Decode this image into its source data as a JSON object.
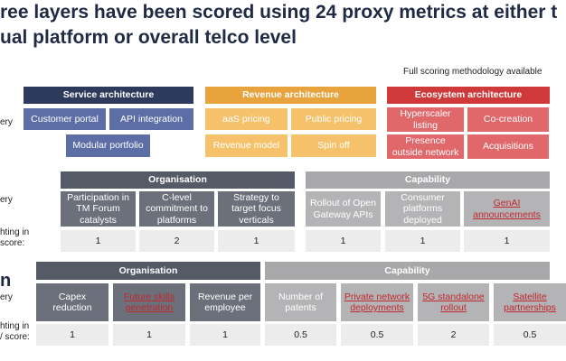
{
  "header": {
    "title_lines": [
      "ree layers have been scored using 24 proxy metrics at either t",
      "ual platform or overall telco level"
    ],
    "note": "Full scoring methodology available"
  },
  "side_labels": [
    "ery",
    "ery",
    "hting in",
    "score:",
    "n",
    "ery",
    "hting in",
    "/ score:"
  ],
  "layer1": {
    "groups": [
      {
        "header": "Service architecture",
        "items": [
          {
            "label": "Customer portal"
          },
          {
            "label": "API integration"
          },
          {
            "label": "Modular portfolio"
          }
        ]
      },
      {
        "header": "Revenue architecture",
        "items": [
          {
            "label": "aaS pricing"
          },
          {
            "label": "Public pricing"
          },
          {
            "label": "Revenue model"
          },
          {
            "label": "Spin off"
          }
        ]
      },
      {
        "header": "Ecosystem architecture",
        "items": [
          {
            "label": "Hyperscaler listing"
          },
          {
            "label": "Co-creation"
          },
          {
            "label": "Presence outside network"
          },
          {
            "label": "Acquisitions"
          }
        ]
      }
    ]
  },
  "layer2": {
    "groups": [
      {
        "header": "Organisation",
        "items": [
          {
            "label": "Participation in TM Forum catalysts",
            "weight": 1
          },
          {
            "label": "C-level commitment to platforms",
            "weight": 2
          },
          {
            "label": "Strategy to target focus verticals",
            "weight": 1
          }
        ]
      },
      {
        "header": "Capability",
        "items": [
          {
            "label": "Rollout of Open Gateway APIs",
            "weight": 1
          },
          {
            "label": "Consumer platforms deployed",
            "weight": 1
          },
          {
            "label": "GenAI announcements",
            "weight": 1,
            "link": true
          }
        ]
      }
    ]
  },
  "layer3": {
    "groups": [
      {
        "header": "Organisation",
        "items": [
          {
            "label": "Capex reduction",
            "weight": 1
          },
          {
            "label": "Future skills penetration",
            "weight": 1,
            "link": true
          },
          {
            "label": "Revenue per employee",
            "weight": 1
          }
        ]
      },
      {
        "header": "Capability",
        "items": [
          {
            "label": "Number of patents",
            "weight": 0.5
          },
          {
            "label": "Private network deployments",
            "weight": 0.5,
            "link": true
          },
          {
            "label": "5G standalone rollout",
            "weight": 2,
            "link": true
          },
          {
            "label": "Satellite partnerships",
            "weight": 0.5,
            "link": true
          }
        ]
      }
    ]
  }
}
